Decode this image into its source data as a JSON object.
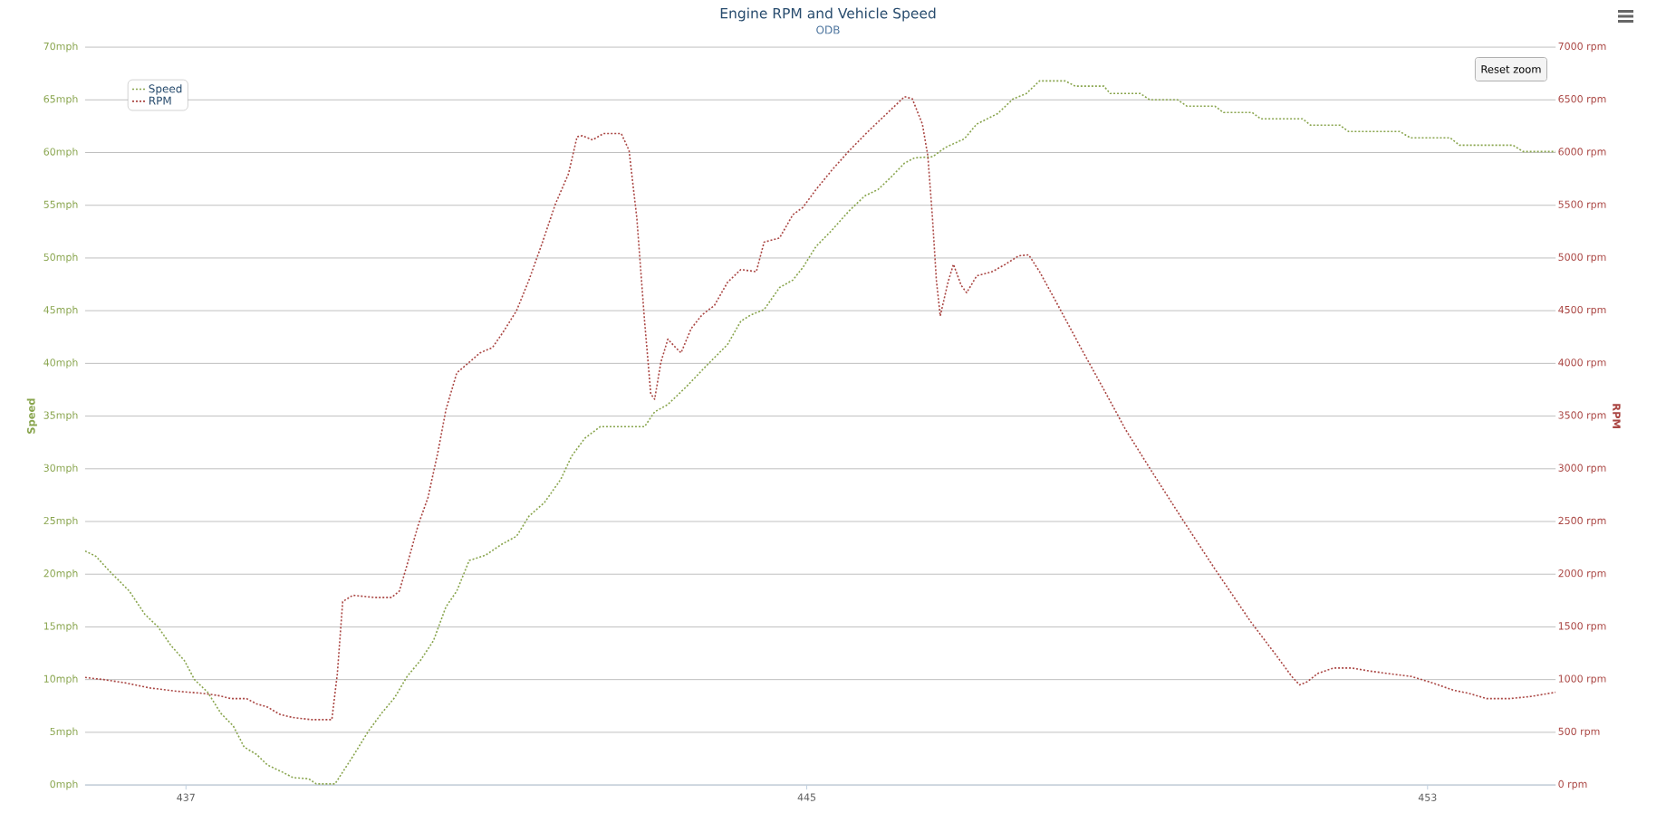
{
  "chart_data": {
    "type": "line",
    "title": "Engine RPM and Vehicle Speed",
    "subtitle": "ODB",
    "ylabel": "Speed",
    "y2label": "RPM",
    "xlim": [
      435.7,
      454.65
    ],
    "xticks": [
      437,
      445,
      453
    ],
    "ylim": [
      0,
      70
    ],
    "yticks": [
      {
        "value": 0,
        "label": "0mph"
      },
      {
        "value": 5,
        "label": "5mph"
      },
      {
        "value": 10,
        "label": "10mph"
      },
      {
        "value": 15,
        "label": "15mph"
      },
      {
        "value": 20,
        "label": "20mph"
      },
      {
        "value": 25,
        "label": "25mph"
      },
      {
        "value": 30,
        "label": "30mph"
      },
      {
        "value": 35,
        "label": "35mph"
      },
      {
        "value": 40,
        "label": "40mph"
      },
      {
        "value": 45,
        "label": "45mph"
      },
      {
        "value": 50,
        "label": "50mph"
      },
      {
        "value": 55,
        "label": "55mph"
      },
      {
        "value": 60,
        "label": "60mph"
      },
      {
        "value": 65,
        "label": "65mph"
      },
      {
        "value": 70,
        "label": "70mph"
      }
    ],
    "y2lim": [
      0,
      7000
    ],
    "y2ticks": [
      {
        "value": 0,
        "label": "0 rpm"
      },
      {
        "value": 500,
        "label": "500 rpm"
      },
      {
        "value": 1000,
        "label": "1000 rpm"
      },
      {
        "value": 1500,
        "label": "1500 rpm"
      },
      {
        "value": 2000,
        "label": "2000 rpm"
      },
      {
        "value": 2500,
        "label": "2500 rpm"
      },
      {
        "value": 3000,
        "label": "3000 rpm"
      },
      {
        "value": 3500,
        "label": "3500 rpm"
      },
      {
        "value": 4000,
        "label": "4000 rpm"
      },
      {
        "value": 4500,
        "label": "4500 rpm"
      },
      {
        "value": 5000,
        "label": "5000 rpm"
      },
      {
        "value": 5500,
        "label": "5500 rpm"
      },
      {
        "value": 6000,
        "label": "6000 rpm"
      },
      {
        "value": 6500,
        "label": "6500 rpm"
      },
      {
        "value": 7000,
        "label": "7000 rpm"
      }
    ],
    "grid": "y",
    "legend": "top left",
    "line_style": "dotted",
    "annotations": [
      "Reset zoom"
    ],
    "series": [
      {
        "name": "Speed",
        "color": "#89a54e",
        "x": [
          435.7,
          435.84,
          436.0,
          436.27,
          436.47,
          436.64,
          436.81,
          436.98,
          437.11,
          437.28,
          437.45,
          437.61,
          437.75,
          437.91,
          438.05,
          438.25,
          438.38,
          438.58,
          438.68,
          438.92,
          439.15,
          439.35,
          439.52,
          439.69,
          439.85,
          440.02,
          440.19,
          440.35,
          440.49,
          440.65,
          440.86,
          441.06,
          441.26,
          441.42,
          441.62,
          441.83,
          441.97,
          442.14,
          442.34,
          442.91,
          443.04,
          443.21,
          443.45,
          443.71,
          443.98,
          444.15,
          444.28,
          444.45,
          444.65,
          444.82,
          444.95,
          445.12,
          445.32,
          445.55,
          445.75,
          445.92,
          446.09,
          446.26,
          446.39,
          446.62,
          446.79,
          447.03,
          447.19,
          447.46,
          447.66,
          447.83,
          448.0,
          448.33,
          448.46,
          448.83,
          448.91,
          449.3,
          449.42,
          449.78,
          449.9,
          450.26,
          450.37,
          450.74,
          450.85,
          451.39,
          451.49,
          451.87,
          451.98,
          452.64,
          452.78,
          453.29,
          453.41,
          454.1,
          454.23,
          454.65
        ],
        "values": [
          22.2,
          21.7,
          20.4,
          18.4,
          16.2,
          15.0,
          13.2,
          11.8,
          10.0,
          8.8,
          6.8,
          5.6,
          3.6,
          2.9,
          1.9,
          1.2,
          0.7,
          0.6,
          0.1,
          0.1,
          2.7,
          5.1,
          6.8,
          8.3,
          10.3,
          11.8,
          13.7,
          16.9,
          18.4,
          21.3,
          21.8,
          22.8,
          23.6,
          25.5,
          26.8,
          29.0,
          31.2,
          32.9,
          34.0,
          34.0,
          35.4,
          36.1,
          37.8,
          39.8,
          41.8,
          44.0,
          44.6,
          45.1,
          47.2,
          47.9,
          49.1,
          51.1,
          52.6,
          54.5,
          55.9,
          56.5,
          57.7,
          59.0,
          59.5,
          59.6,
          60.5,
          61.3,
          62.7,
          63.7,
          65.1,
          65.6,
          66.8,
          66.8,
          66.3,
          66.3,
          65.6,
          65.6,
          65.0,
          65.0,
          64.4,
          64.4,
          63.8,
          63.8,
          63.2,
          63.2,
          62.6,
          62.6,
          62.0,
          62.0,
          61.4,
          61.4,
          60.7,
          60.7,
          60.1,
          60.1
        ]
      },
      {
        "name": "RPM",
        "color": "#aa4643",
        "axis": "y2",
        "x": [
          435.7,
          435.94,
          436.21,
          436.54,
          436.88,
          437.21,
          437.41,
          437.58,
          437.78,
          437.91,
          438.05,
          438.21,
          438.38,
          438.62,
          438.88,
          438.95,
          439.02,
          439.15,
          439.42,
          439.65,
          439.75,
          439.85,
          439.99,
          440.12,
          440.25,
          440.35,
          440.49,
          440.65,
          440.79,
          440.95,
          441.09,
          441.26,
          441.42,
          441.59,
          441.76,
          441.93,
          442.04,
          442.11,
          442.24,
          442.38,
          442.61,
          442.71,
          442.81,
          442.91,
          442.99,
          443.04,
          443.12,
          443.21,
          443.31,
          443.38,
          443.51,
          443.65,
          443.81,
          443.98,
          444.15,
          444.35,
          444.45,
          444.65,
          444.82,
          444.95,
          445.12,
          445.32,
          445.55,
          445.79,
          446.06,
          446.26,
          446.36,
          446.49,
          446.56,
          446.62,
          446.67,
          446.72,
          446.82,
          446.89,
          446.99,
          447.06,
          447.19,
          447.39,
          447.56,
          447.73,
          447.86,
          448.0,
          448.26,
          448.53,
          448.8,
          449.11,
          449.45,
          449.85,
          450.25,
          450.72,
          451.05,
          451.25,
          451.35,
          451.45,
          451.59,
          451.79,
          452.02,
          452.26,
          452.79,
          453.06,
          453.33,
          453.53,
          453.76,
          454.06,
          454.33,
          454.65
        ],
        "values": [
          1020,
          1000,
          970,
          920,
          890,
          870,
          850,
          820,
          820,
          770,
          740,
          670,
          640,
          620,
          620,
          1050,
          1740,
          1800,
          1780,
          1780,
          1840,
          2090,
          2460,
          2730,
          3170,
          3560,
          3910,
          4010,
          4100,
          4150,
          4300,
          4500,
          4790,
          5140,
          5510,
          5800,
          6150,
          6160,
          6120,
          6180,
          6180,
          6020,
          5380,
          4400,
          3710,
          3660,
          4010,
          4230,
          4150,
          4100,
          4330,
          4460,
          4550,
          4770,
          4890,
          4870,
          5150,
          5190,
          5410,
          5480,
          5650,
          5830,
          6020,
          6200,
          6390,
          6530,
          6510,
          6270,
          5970,
          5380,
          4790,
          4450,
          4770,
          4940,
          4740,
          4670,
          4830,
          4870,
          4940,
          5020,
          5030,
          4870,
          4520,
          4150,
          3790,
          3370,
          2970,
          2510,
          2060,
          1550,
          1230,
          1030,
          950,
          980,
          1060,
          1110,
          1110,
          1080,
          1030,
          970,
          900,
          870,
          820,
          820,
          840,
          880
        ]
      }
    ]
  }
}
